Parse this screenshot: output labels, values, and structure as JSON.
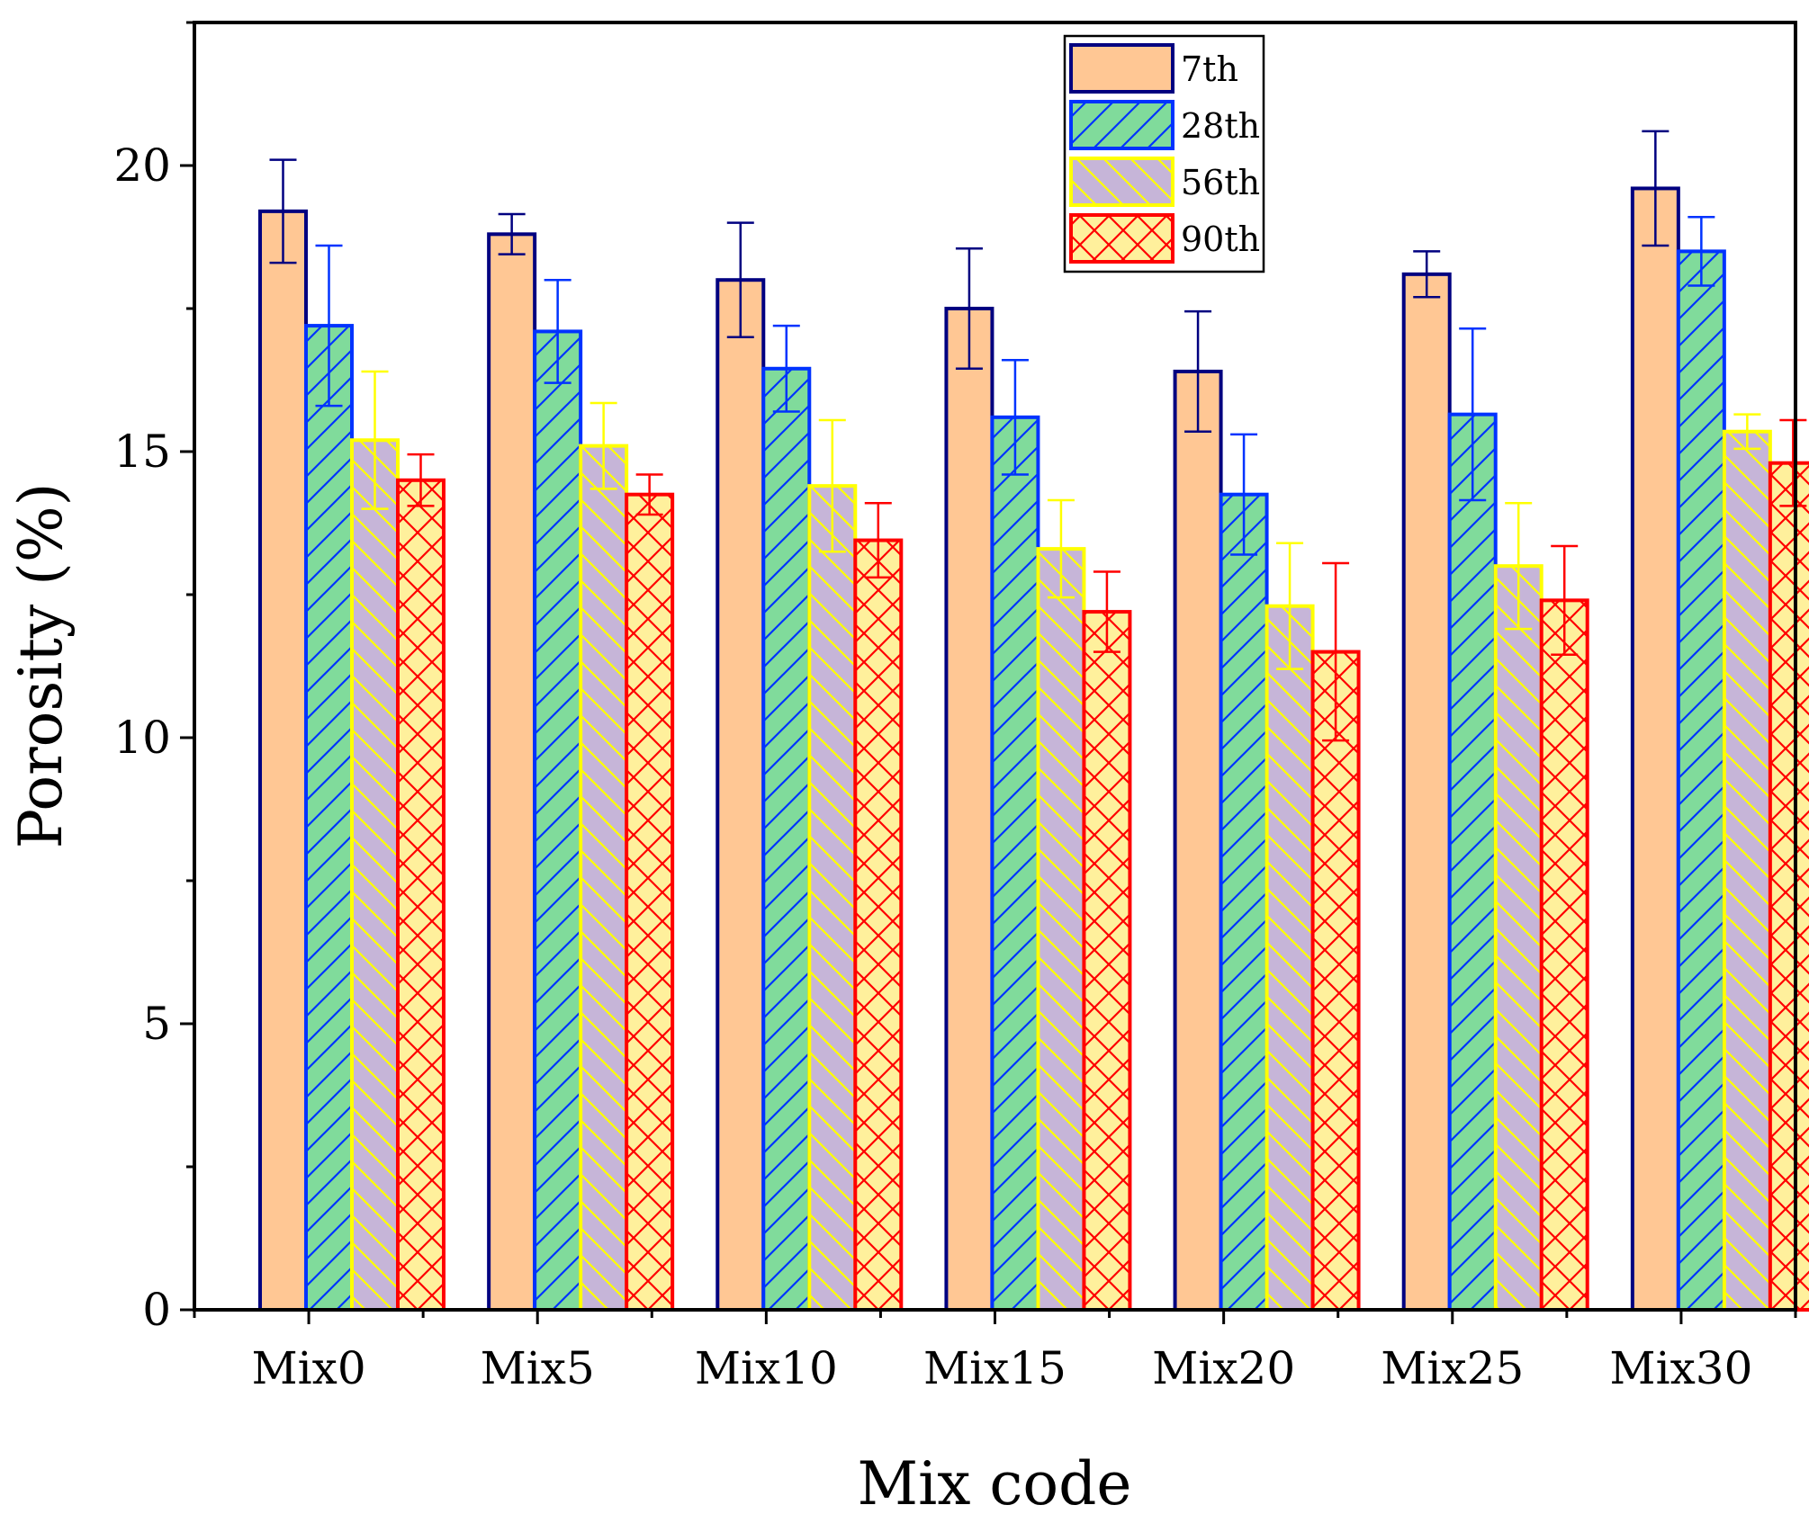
{
  "chart_data": {
    "type": "bar",
    "title": "",
    "xlabel": "Mix code",
    "ylabel": "Porosity (%)",
    "ylim": [
      0,
      22.5
    ],
    "yticks": [
      0,
      5,
      10,
      15,
      20
    ],
    "grid": false,
    "legend_position": "top-center",
    "categories": [
      "Mix0",
      "Mix5",
      "Mix10",
      "Mix15",
      "Mix20",
      "Mix25",
      "Mix30"
    ],
    "series": [
      {
        "name": "7th",
        "values": [
          19.2,
          18.8,
          18.0,
          17.5,
          16.4,
          18.1,
          19.6
        ],
        "errors": [
          0.9,
          0.35,
          1.0,
          1.05,
          1.05,
          0.4,
          1.0
        ],
        "fill": "#FFC794",
        "stroke": "#000080",
        "error_color": "#000080",
        "pattern": "none"
      },
      {
        "name": "28th",
        "values": [
          17.2,
          17.1,
          16.45,
          15.6,
          14.25,
          15.65,
          18.5
        ],
        "errors": [
          1.4,
          0.9,
          0.75,
          1.0,
          1.05,
          1.5,
          0.6
        ],
        "fill": "#80DB9B",
        "stroke": "#0033FF",
        "error_color": "#0033FF",
        "pattern": "diagonal-right"
      },
      {
        "name": "56th",
        "values": [
          15.2,
          15.1,
          14.4,
          13.3,
          12.3,
          13.0,
          15.35
        ],
        "errors": [
          1.2,
          0.75,
          1.15,
          0.85,
          1.1,
          1.1,
          0.3
        ],
        "fill": "#C6B5D8",
        "stroke": "#FFFF00",
        "error_color": "#FFFF00",
        "pattern": "diagonal-left"
      },
      {
        "name": "90th",
        "values": [
          14.5,
          14.25,
          13.45,
          12.2,
          11.5,
          12.4,
          14.8
        ],
        "errors": [
          0.45,
          0.35,
          0.65,
          0.7,
          1.55,
          0.95,
          0.75
        ],
        "fill": "#FFF09C",
        "stroke": "#FF0000",
        "error_color": "#FF0000",
        "pattern": "crosshatch"
      }
    ]
  }
}
